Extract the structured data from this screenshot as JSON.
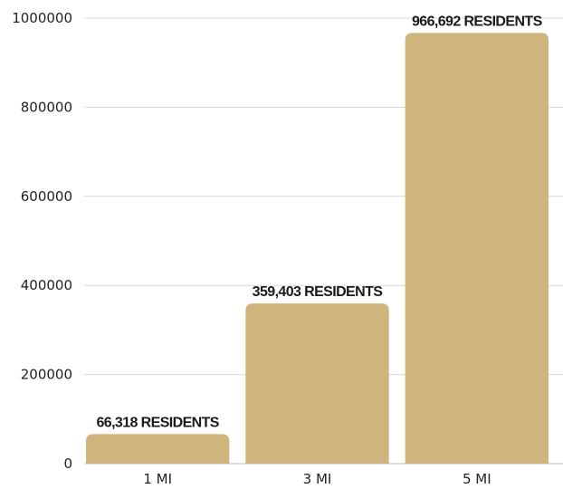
{
  "chart_data": {
    "type": "bar",
    "categories": [
      "1 MI",
      "3 MI",
      "5 MI"
    ],
    "values": [
      66318,
      359403,
      966692
    ],
    "data_labels": [
      "66,318 RESIDENTS",
      "359,403 RESIDENTS",
      "966,692 RESIDENTS"
    ],
    "y_ticks": [
      "0",
      "200000",
      "400000",
      "600000",
      "800000",
      "1000000"
    ],
    "ylim": [
      0,
      1000000
    ],
    "grid": true,
    "legend": "none",
    "bar_color": "#CDB57D",
    "title": "",
    "xlabel": "",
    "ylabel": ""
  }
}
